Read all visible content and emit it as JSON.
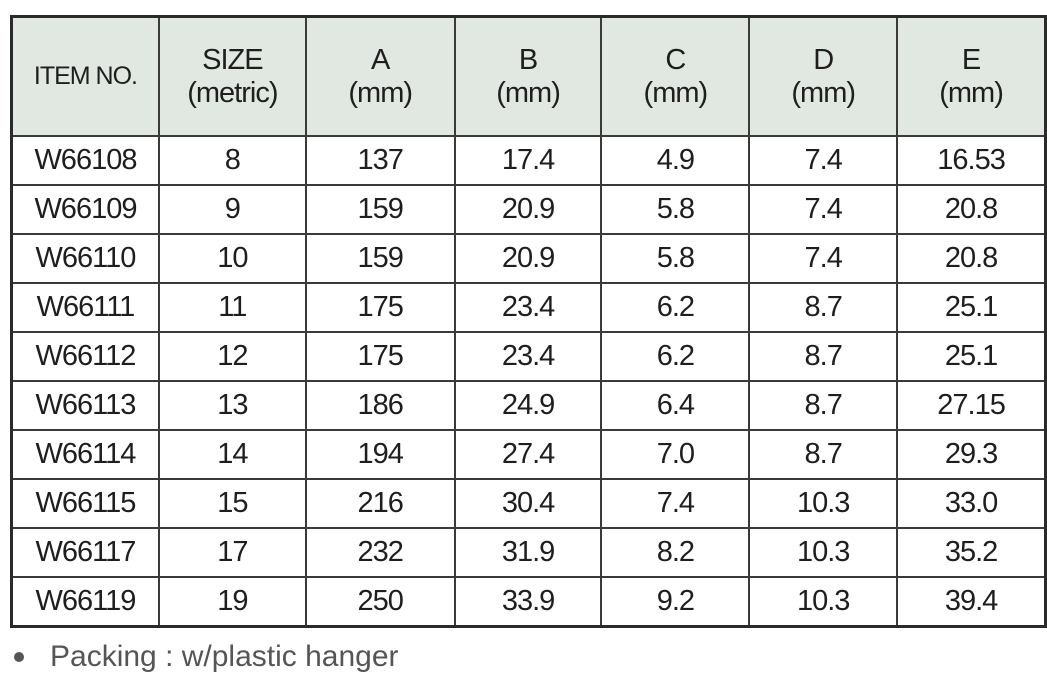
{
  "table": {
    "header": [
      [
        "ITEM NO."
      ],
      [
        "SIZE",
        "(metric)"
      ],
      [
        "A",
        "(mm)"
      ],
      [
        "B",
        "(mm)"
      ],
      [
        "C",
        "(mm)"
      ],
      [
        "D",
        "(mm)"
      ],
      [
        "E",
        "(mm)"
      ]
    ],
    "rows": [
      [
        "W66108",
        "8",
        "137",
        "17.4",
        "4.9",
        "7.4",
        "16.53"
      ],
      [
        "W66109",
        "9",
        "159",
        "20.9",
        "5.8",
        "7.4",
        "20.8"
      ],
      [
        "W66110",
        "10",
        "159",
        "20.9",
        "5.8",
        "7.4",
        "20.8"
      ],
      [
        "W66111",
        "11",
        "175",
        "23.4",
        "6.2",
        "8.7",
        "25.1"
      ],
      [
        "W66112",
        "12",
        "175",
        "23.4",
        "6.2",
        "8.7",
        "25.1"
      ],
      [
        "W66113",
        "13",
        "186",
        "24.9",
        "6.4",
        "8.7",
        "27.15"
      ],
      [
        "W66114",
        "14",
        "194",
        "27.4",
        "7.0",
        "8.7",
        "29.3"
      ],
      [
        "W66115",
        "15",
        "216",
        "30.4",
        "7.4",
        "10.3",
        "33.0"
      ],
      [
        "W66117",
        "17",
        "232",
        "31.9",
        "8.2",
        "10.3",
        "35.2"
      ],
      [
        "W66119",
        "19",
        "250",
        "33.9",
        "9.2",
        "10.3",
        "39.4"
      ]
    ]
  },
  "note": "Packing : w/plastic hanger"
}
